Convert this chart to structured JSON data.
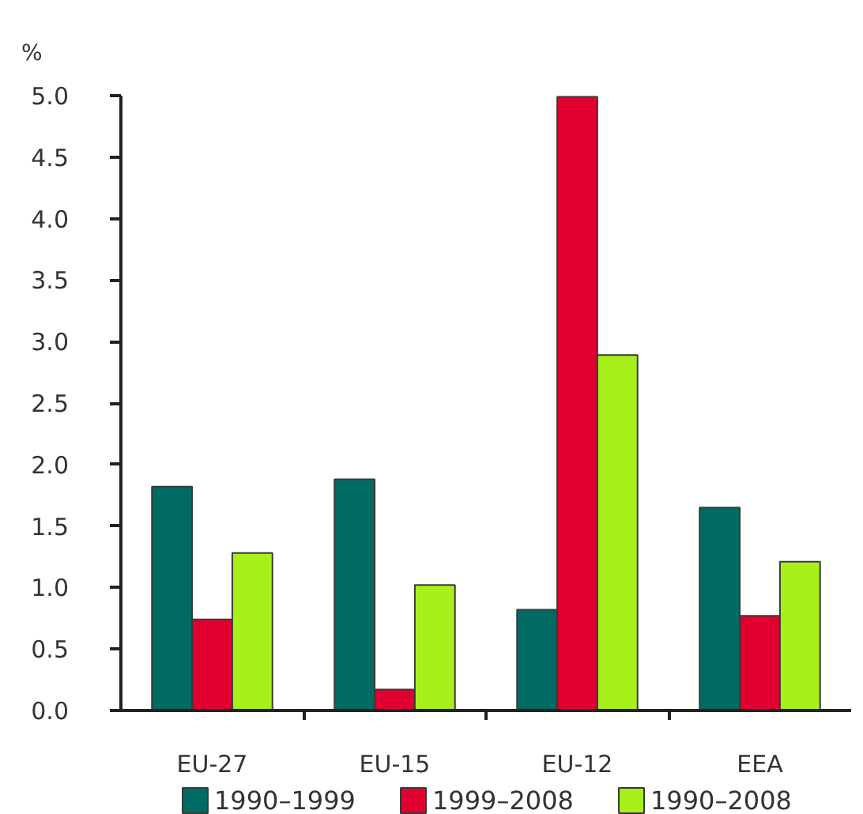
{
  "chart_data": {
    "type": "bar",
    "ylabel": "%",
    "categories": [
      "EU-27",
      "EU-15",
      "EU-12",
      "EEA"
    ],
    "series": [
      {
        "name": "1990–1999",
        "color": "#006b63",
        "values": [
          1.82,
          1.88,
          0.82,
          1.65
        ]
      },
      {
        "name": "1999–2008",
        "color": "#e0002f",
        "values": [
          0.74,
          0.17,
          4.99,
          0.77
        ]
      },
      {
        "name": "1990–2008",
        "color": "#a8f01a",
        "values": [
          1.28,
          1.02,
          2.89,
          1.21
        ]
      }
    ],
    "ylim": [
      0,
      5
    ],
    "yticks": [
      {
        "value": 0,
        "label": "0.0"
      },
      {
        "value": 0.5,
        "label": "0.5"
      },
      {
        "value": 1,
        "label": "1.0"
      },
      {
        "value": 1.5,
        "label": "1.5"
      },
      {
        "value": 2,
        "label": "2.0"
      },
      {
        "value": 2.5,
        "label": "2.5"
      },
      {
        "value": 3,
        "label": "3.0"
      },
      {
        "value": 3.5,
        "label": "3.5"
      },
      {
        "value": 4,
        "label": "4.0"
      },
      {
        "value": 4.5,
        "label": "4.5"
      },
      {
        "value": 5,
        "label": "5.0"
      }
    ],
    "grid": false,
    "legend": "bottom"
  }
}
